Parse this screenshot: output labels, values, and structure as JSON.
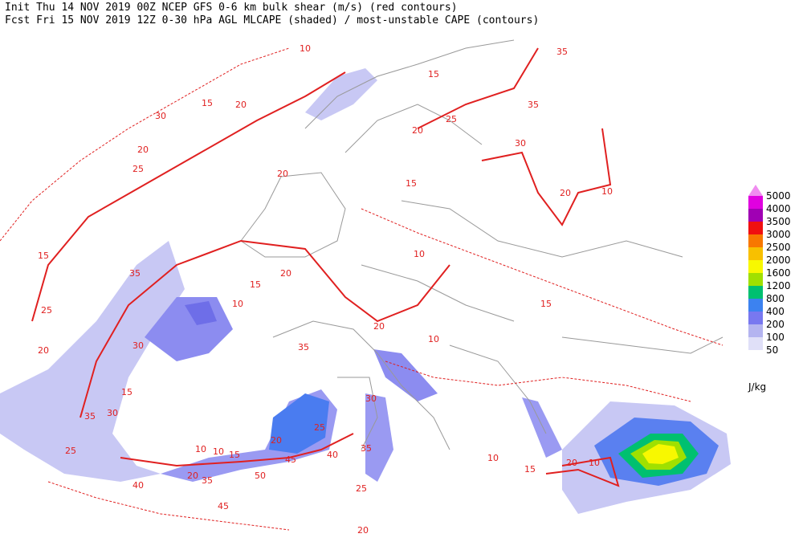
{
  "header": {
    "line1": "Init  Thu 14 NOV 2019 00Z  NCEP GFS 0-6 km bulk shear (m/s) (red contours)",
    "line2": "Fcst Fri 15 NOV 2019 12Z   0-30 hPa AGL MLCAPE (shaded) / most-unstable CAPE (contours)"
  },
  "legend": {
    "units": "J/kg",
    "levels": [
      {
        "label": "5000",
        "color": "#f08cf0"
      },
      {
        "label": "4000",
        "color": "#e000e0"
      },
      {
        "label": "3500",
        "color": "#a000b4"
      },
      {
        "label": "3000",
        "color": "#f01010"
      },
      {
        "label": "2500",
        "color": "#f87800"
      },
      {
        "label": "2000",
        "color": "#f8c000"
      },
      {
        "label": "1600",
        "color": "#f8f800"
      },
      {
        "label": "1200",
        "color": "#a0e000"
      },
      {
        "label": "800",
        "color": "#00c070"
      },
      {
        "label": "400",
        "color": "#3c82f0"
      },
      {
        "label": "200",
        "color": "#7878f0"
      },
      {
        "label": "100",
        "color": "#b4b4f0"
      },
      {
        "label": "50",
        "color": "#e0e0f8"
      }
    ]
  },
  "map": {
    "contour_labels": [
      "10",
      "35",
      "15",
      "20",
      "15",
      "30",
      "20",
      "25",
      "20",
      "25",
      "35",
      "30",
      "15",
      "20",
      "10",
      "20",
      "15",
      "35",
      "25",
      "20",
      "20",
      "10",
      "15",
      "10",
      "15",
      "30",
      "35",
      "10",
      "20",
      "15",
      "35",
      "30",
      "25",
      "40",
      "45",
      "50",
      "35",
      "20",
      "25",
      "10",
      "20",
      "10",
      "15",
      "25",
      "30",
      "35",
      "45",
      "40",
      "10",
      "20",
      "10",
      "15",
      "20"
    ]
  }
}
